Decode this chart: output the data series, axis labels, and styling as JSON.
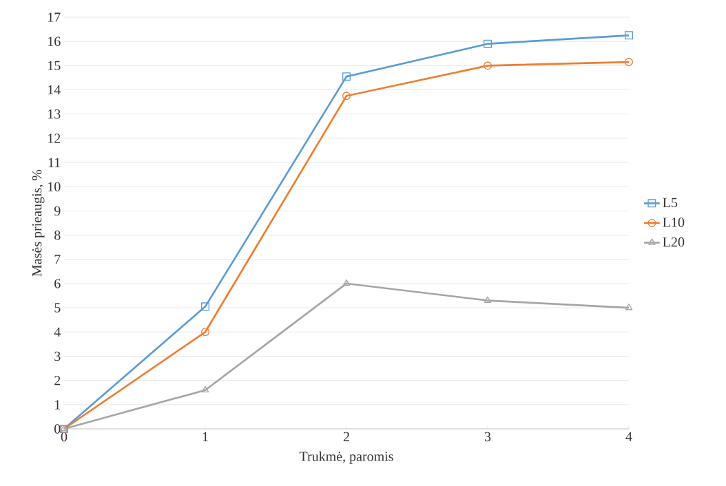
{
  "chart_data": {
    "type": "line",
    "xlabel": "Trukmė, paromis",
    "ylabel": "Masės prieaugis, %",
    "x": [
      0,
      1,
      2,
      3,
      4
    ],
    "xlim": [
      0,
      4
    ],
    "xticks": [
      0,
      1,
      2,
      3,
      4
    ],
    "ylim": [
      0,
      17
    ],
    "yticks": [
      0,
      1,
      2,
      3,
      4,
      5,
      6,
      7,
      8,
      9,
      10,
      11,
      12,
      13,
      14,
      15,
      16,
      17
    ],
    "grid": "y",
    "legend": "right",
    "series": [
      {
        "name": "L5",
        "color": "#5b9bd5",
        "marker": "square",
        "values": [
          0,
          5.05,
          14.55,
          15.9,
          16.25
        ]
      },
      {
        "name": "L10",
        "color": "#ed7d31",
        "marker": "circle",
        "values": [
          0,
          4.0,
          13.75,
          15.0,
          15.15
        ]
      },
      {
        "name": "L20",
        "color": "#a5a5a5",
        "marker": "triangle",
        "values": [
          0,
          1.6,
          6.0,
          5.3,
          5.0
        ]
      }
    ]
  }
}
